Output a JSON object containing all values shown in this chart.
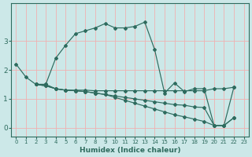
{
  "xlabel": "Humidex (Indice chaleur)",
  "bg_color": "#cce8e8",
  "grid_color": "#f0b0b0",
  "line_color": "#2e6b5e",
  "xlim": [
    -0.5,
    23.5
  ],
  "ylim": [
    -0.3,
    4.3
  ],
  "yticks": [
    0,
    1,
    2,
    3
  ],
  "xticks": [
    0,
    1,
    2,
    3,
    4,
    5,
    6,
    7,
    8,
    9,
    10,
    11,
    12,
    13,
    14,
    15,
    16,
    17,
    18,
    19,
    20,
    21,
    22,
    23
  ],
  "lines": [
    {
      "x": [
        0,
        1,
        2,
        3,
        4,
        5,
        6,
        7,
        8,
        9,
        10,
        11,
        12,
        13,
        14,
        15,
        16,
        17,
        18,
        19,
        20,
        21,
        22
      ],
      "y": [
        2.2,
        1.75,
        1.5,
        1.5,
        2.4,
        2.85,
        3.25,
        3.35,
        3.45,
        3.6,
        3.45,
        3.45,
        3.5,
        3.65,
        2.7,
        1.2,
        1.55,
        1.25,
        1.35,
        1.35,
        0.08,
        0.08,
        1.4
      ]
    },
    {
      "x": [
        2,
        3,
        4,
        5,
        6,
        7,
        8,
        9,
        10,
        11,
        12,
        13,
        14,
        15,
        16,
        17,
        18,
        19,
        20,
        21,
        22
      ],
      "y": [
        1.5,
        1.5,
        1.35,
        1.3,
        1.3,
        1.3,
        1.28,
        1.28,
        1.28,
        1.28,
        1.28,
        1.28,
        1.28,
        1.28,
        1.28,
        1.28,
        1.28,
        1.28,
        1.35,
        1.35,
        1.4
      ]
    },
    {
      "x": [
        2,
        3,
        4,
        5,
        6,
        7,
        8,
        9,
        10,
        11,
        12,
        13,
        14,
        15,
        16,
        17,
        18,
        19,
        20,
        21,
        22
      ],
      "y": [
        1.5,
        1.45,
        1.35,
        1.3,
        1.28,
        1.25,
        1.2,
        1.15,
        1.1,
        1.05,
        1.0,
        0.95,
        0.9,
        0.85,
        0.8,
        0.78,
        0.72,
        0.7,
        0.08,
        0.08,
        0.35
      ]
    },
    {
      "x": [
        2,
        3,
        4,
        5,
        6,
        7,
        8,
        9,
        10,
        11,
        12,
        13,
        14,
        15,
        16,
        17,
        18,
        19,
        20,
        21,
        22
      ],
      "y": [
        1.5,
        1.45,
        1.35,
        1.3,
        1.28,
        1.25,
        1.2,
        1.15,
        1.05,
        0.95,
        0.85,
        0.75,
        0.65,
        0.55,
        0.45,
        0.38,
        0.3,
        0.22,
        0.08,
        0.08,
        0.35
      ]
    }
  ]
}
